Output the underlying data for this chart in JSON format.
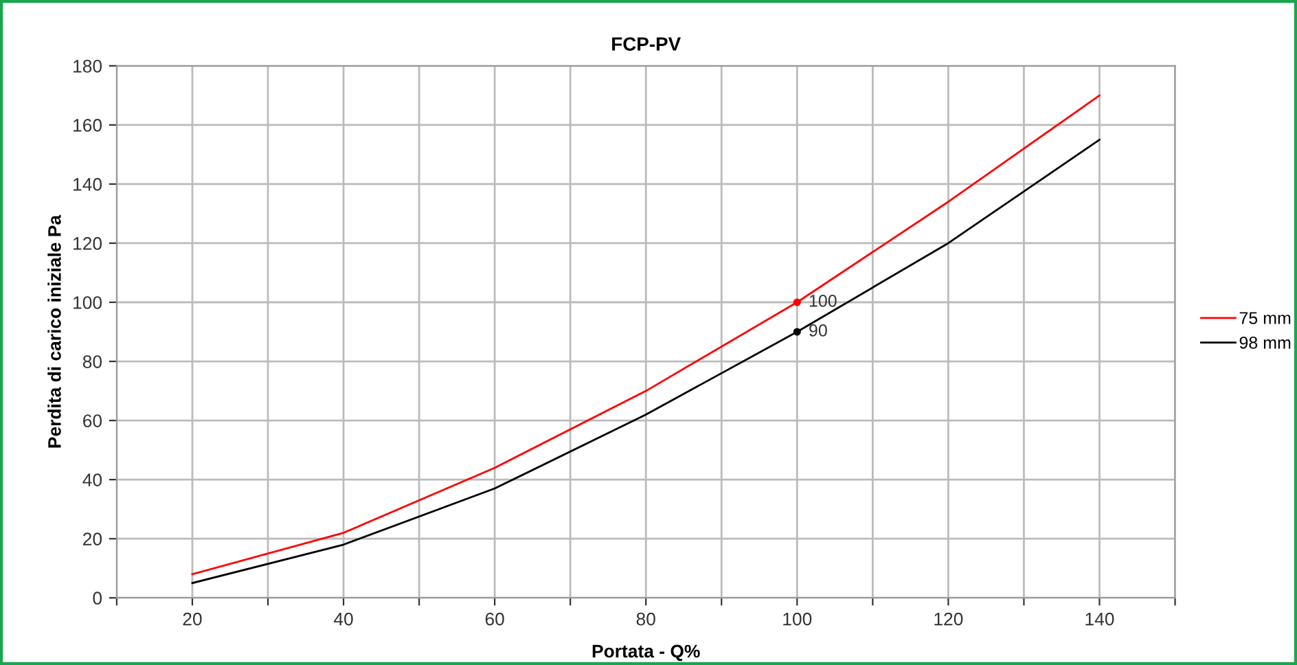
{
  "chart_data": {
    "type": "line",
    "title": "FCP-PV",
    "xlabel": "Portata - Q%",
    "ylabel": "Perdita di carico iniziale Pa",
    "x": [
      20,
      40,
      60,
      80,
      100,
      120,
      140
    ],
    "series": [
      {
        "name": "75 mm",
        "color": "#ff0000",
        "values": [
          8,
          22,
          44,
          70,
          100,
          134,
          170
        ],
        "value_labels": [
          null,
          null,
          null,
          null,
          "100",
          null,
          null
        ]
      },
      {
        "name": "98 mm",
        "color": "#000000",
        "values": [
          5,
          18,
          37,
          62,
          90,
          120,
          155
        ],
        "value_labels": [
          null,
          null,
          null,
          null,
          "90",
          null,
          null
        ]
      }
    ],
    "xlim": [
      10,
      150
    ],
    "xticks": [
      {
        "value": 10,
        "label": null
      },
      20,
      {
        "value": 30,
        "label": null
      },
      40,
      {
        "value": 50,
        "label": null
      },
      60,
      {
        "value": 70,
        "label": null
      },
      80,
      {
        "value": 90,
        "label": null
      },
      100,
      {
        "value": 110,
        "label": null
      },
      120,
      {
        "value": 130,
        "label": null
      },
      140,
      {
        "value": 150,
        "label": null
      }
    ],
    "ylim": [
      0,
      180
    ],
    "yticks": [
      0,
      20,
      40,
      60,
      80,
      100,
      120,
      140,
      160,
      180
    ],
    "grid": true,
    "legend": "right"
  }
}
